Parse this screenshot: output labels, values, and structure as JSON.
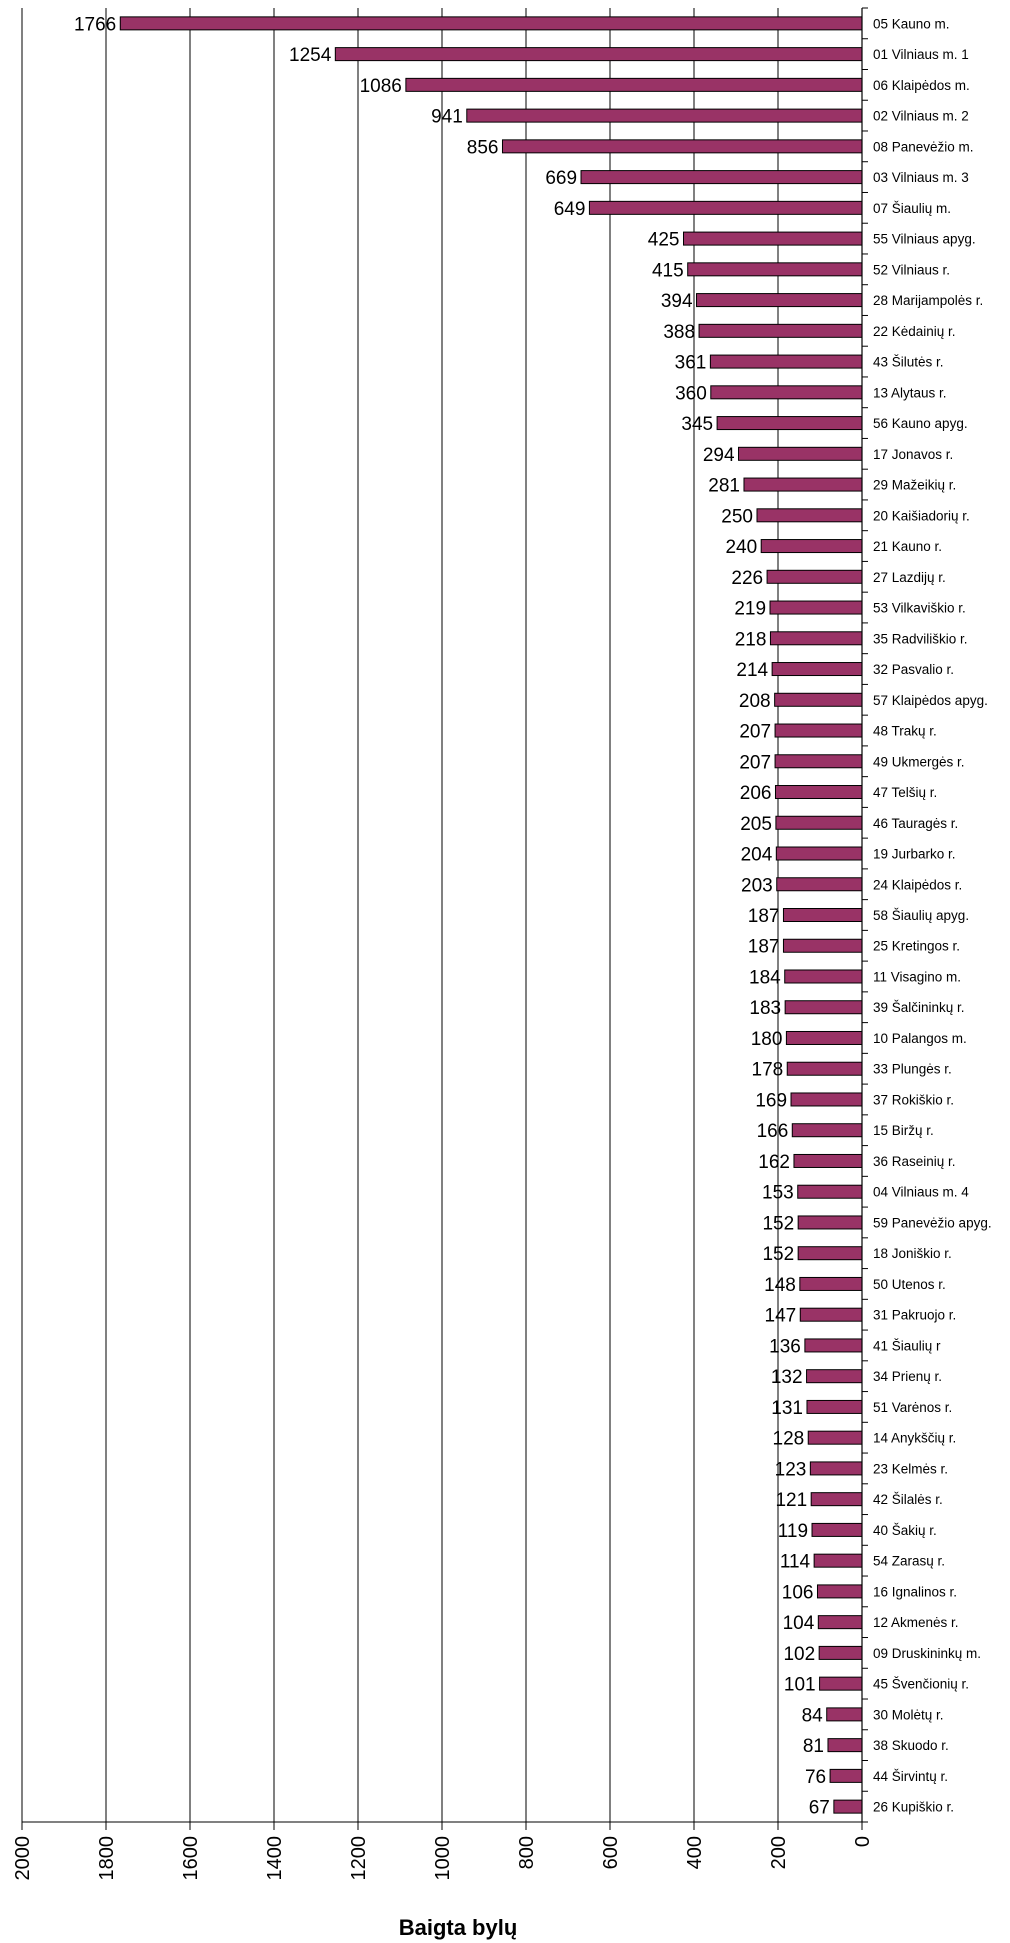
{
  "chart_data": {
    "type": "bar",
    "orientation": "horizontal",
    "xlabel": "Baigta bylų",
    "xlim": [
      0,
      2000
    ],
    "x_reversed": true,
    "xticks": [
      "0",
      "200",
      "400",
      "600",
      "800",
      "1000",
      "1200",
      "1400",
      "1600",
      "1800",
      "2000"
    ],
    "grid": "vertical",
    "bar_color": "#993366",
    "categories": [
      "05 Kauno m.",
      "01 Vilniaus m. 1",
      "06 Klaipėdos m.",
      "02 Vilniaus m. 2",
      "08 Panevėžio m.",
      "03 Vilniaus m. 3",
      "07 Šiaulių m.",
      "55 Vilniaus apyg.",
      "52 Vilniaus r.",
      "28 Marijampolės r.",
      "22 Kėdainių r.",
      "43 Šilutės r.",
      "13 Alytaus r.",
      "56 Kauno apyg.",
      "17 Jonavos r.",
      "29 Mažeikių r.",
      "20 Kaišiadorių r.",
      "21 Kauno r.",
      "27 Lazdijų r.",
      "53 Vilkaviškio r.",
      "35 Radviliškio r.",
      "32 Pasvalio r.",
      "57 Klaipėdos apyg.",
      "48 Trakų r.",
      "49 Ukmergės r.",
      "47 Telšių r.",
      "46 Tauragės r.",
      "19 Jurbarko r.",
      "24 Klaipėdos r.",
      "58 Šiaulių apyg.",
      "25 Kretingos r.",
      "11 Visagino m.",
      "39 Šalčininkų r.",
      "10 Palangos m.",
      "33 Plungės r.",
      "37 Rokiškio r.",
      "15 Biržų r.",
      "36 Raseinių r.",
      "04 Vilniaus m. 4",
      "59 Panevėžio apyg.",
      "18 Joniškio r.",
      "50 Utenos r.",
      "31 Pakruojo r.",
      "41 Šiaulių r",
      "34 Prienų r.",
      "51 Varėnos r.",
      "14 Anykščių r.",
      "23 Kelmės r.",
      "42 Šilalės r.",
      "40 Šakių r.",
      "54 Zarasų r.",
      "16 Ignalinos r.",
      "12 Akmenės r.",
      "09 Druskininkų m.",
      "45 Švenčionių r.",
      "30 Molėtų r.",
      "38 Skuodo r.",
      "44 Širvintų r.",
      "26 Kupiškio r."
    ],
    "values": [
      1766,
      1254,
      1086,
      941,
      856,
      669,
      649,
      425,
      415,
      394,
      388,
      361,
      360,
      345,
      294,
      281,
      250,
      240,
      226,
      219,
      218,
      214,
      208,
      207,
      207,
      206,
      205,
      204,
      203,
      187,
      187,
      184,
      183,
      180,
      178,
      169,
      166,
      162,
      153,
      152,
      152,
      148,
      147,
      136,
      132,
      131,
      128,
      123,
      121,
      119,
      114,
      106,
      104,
      102,
      101,
      84,
      81,
      76,
      67
    ]
  }
}
